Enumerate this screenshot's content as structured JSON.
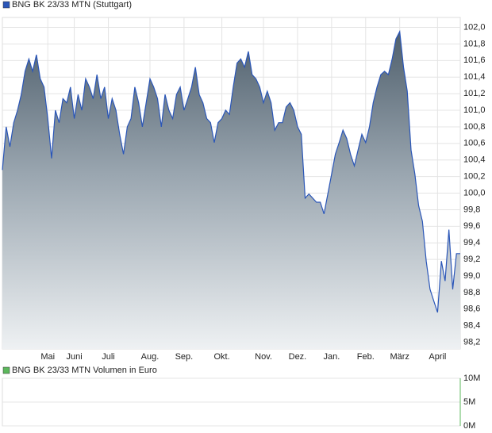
{
  "chart_data": [
    {
      "type": "area",
      "series": [
        {
          "name": "BNG BK 23/33 MTN (Stuttgart)",
          "color": "#2a56b8",
          "values": [
            100.28,
            100.8,
            100.56,
            100.85,
            101.0,
            101.19,
            101.47,
            101.62,
            101.47,
            101.67,
            101.38,
            101.28,
            100.9,
            100.42,
            101.0,
            100.85,
            101.14,
            101.09,
            101.28,
            100.9,
            101.19,
            101.0,
            101.38,
            101.28,
            101.14,
            101.43,
            101.14,
            101.28,
            100.9,
            101.14,
            101.0,
            100.71,
            100.47,
            100.8,
            100.9,
            101.28,
            101.09,
            100.8,
            101.09,
            101.38,
            101.28,
            101.14,
            100.8,
            101.19,
            101.0,
            100.9,
            101.19,
            101.28,
            101.0,
            101.14,
            101.28,
            101.52,
            101.19,
            101.09,
            100.9,
            100.85,
            100.61,
            100.85,
            100.9,
            101.0,
            100.95,
            101.28,
            101.57,
            101.62,
            101.52,
            101.71,
            101.43,
            101.38,
            101.28,
            101.09,
            101.23,
            101.09,
            100.76,
            100.85,
            100.85,
            101.04,
            101.09,
            101.0,
            100.8,
            100.71,
            99.94,
            99.99,
            99.94,
            99.89,
            99.89,
            99.75,
            99.99,
            100.23,
            100.47,
            100.61,
            100.76,
            100.66,
            100.47,
            100.33,
            100.52,
            100.71,
            100.61,
            100.8,
            101.09,
            101.28,
            101.43,
            101.47,
            101.43,
            101.62,
            101.86,
            101.95,
            101.52,
            101.23,
            100.52,
            100.23,
            99.85,
            99.66,
            99.18,
            98.84,
            98.7,
            98.56,
            99.18,
            98.94,
            99.56,
            98.84,
            99.27,
            99.27
          ]
        }
      ],
      "xlim": [
        0,
        121
      ],
      "xticks": [
        {
          "value": 12,
          "label": "Mai"
        },
        {
          "value": 19,
          "label": "Juni"
        },
        {
          "value": 28,
          "label": "Juli"
        },
        {
          "value": 39,
          "label": "Aug."
        },
        {
          "value": 48,
          "label": "Sep."
        },
        {
          "value": 58,
          "label": "Okt."
        },
        {
          "value": 69,
          "label": "Nov."
        },
        {
          "value": 78,
          "label": "Dez."
        },
        {
          "value": 87,
          "label": "Jan."
        },
        {
          "value": 96,
          "label": "Feb."
        },
        {
          "value": 105,
          "label": "März"
        },
        {
          "value": 115,
          "label": "April"
        }
      ],
      "ylim": [
        98.12,
        102.12
      ],
      "yticks": [
        {
          "value": 98.2,
          "label": "98,2"
        },
        {
          "value": 98.4,
          "label": "98,4"
        },
        {
          "value": 98.6,
          "label": "98,6"
        },
        {
          "value": 98.8,
          "label": "98,8"
        },
        {
          "value": 99.0,
          "label": "99,0"
        },
        {
          "value": 99.2,
          "label": "99,2"
        },
        {
          "value": 99.4,
          "label": "99,4"
        },
        {
          "value": 99.6,
          "label": "99,6"
        },
        {
          "value": 99.8,
          "label": "99,8"
        },
        {
          "value": 100.0,
          "label": "100,0"
        },
        {
          "value": 100.2,
          "label": "100,2"
        },
        {
          "value": 100.4,
          "label": "100,4"
        },
        {
          "value": 100.6,
          "label": "100,6"
        },
        {
          "value": 100.8,
          "label": "100,8"
        },
        {
          "value": 101.0,
          "label": "101,0"
        },
        {
          "value": 101.2,
          "label": "101,2"
        },
        {
          "value": 101.4,
          "label": "101,4"
        },
        {
          "value": 101.6,
          "label": "101,6"
        },
        {
          "value": 101.8,
          "label": "101,8"
        },
        {
          "value": 102.0,
          "label": "102,0"
        }
      ],
      "grid": true
    },
    {
      "type": "bar",
      "series": [
        {
          "name": "BNG BK 23/33 MTN Volumen in Euro",
          "color": "#5cb85c"
        }
      ],
      "ylim": [
        0,
        10000000
      ],
      "yticks": [
        {
          "value": 0,
          "label": "0M"
        },
        {
          "value": 5000000,
          "label": "5M"
        },
        {
          "value": 10000000,
          "label": "10M"
        }
      ],
      "grid": true
    }
  ]
}
